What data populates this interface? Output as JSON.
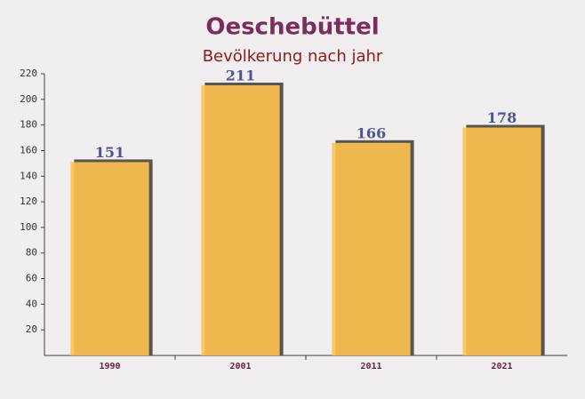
{
  "chart_data": {
    "type": "bar",
    "title": "Oeschebüttel",
    "subtitle": "Bevölkerung nach jahr",
    "categories": [
      "1990",
      "2001",
      "2011",
      "2021"
    ],
    "values": [
      151,
      211,
      166,
      178
    ],
    "color": "#ffc34f",
    "ylim": [
      0,
      220
    ],
    "yticks": [
      20,
      40,
      60,
      80,
      100,
      120,
      140,
      160,
      180,
      200,
      220
    ],
    "grid": false
  }
}
